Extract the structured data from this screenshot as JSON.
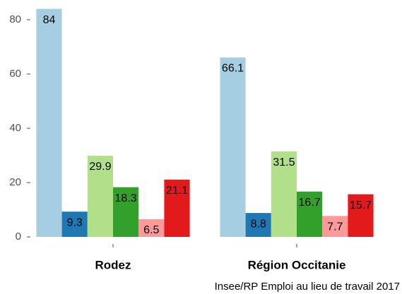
{
  "chart_data": {
    "type": "bar",
    "categories": [
      "Rodez",
      "Région Occitanie"
    ],
    "series": [
      {
        "color": "#a6cee3",
        "values": [
          84,
          66.1
        ]
      },
      {
        "color": "#1f78b4",
        "values": [
          9.3,
          8.8
        ]
      },
      {
        "color": "#b2df8a",
        "values": [
          29.9,
          31.5
        ]
      },
      {
        "color": "#33a02c",
        "values": [
          18.3,
          16.7
        ]
      },
      {
        "color": "#fb9a99",
        "values": [
          6.5,
          7.7
        ]
      },
      {
        "color": "#e31a1c",
        "values": [
          21.1,
          15.7
        ]
      }
    ],
    "ylim": [
      -2,
      86
    ],
    "yticks": [
      0,
      20,
      40,
      60,
      80
    ],
    "grid": false,
    "caption": "Insee/RP Emploi au lieu de travail 2017"
  }
}
